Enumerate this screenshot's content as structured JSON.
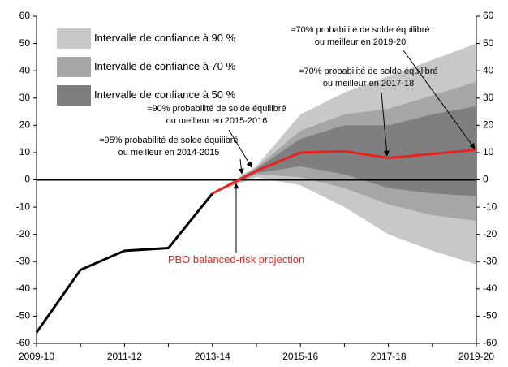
{
  "chart_data": {
    "type": "fan",
    "categories": [
      "2009-10",
      null,
      "2011-12",
      null,
      "2013-14",
      null,
      "2015-16",
      null,
      "2017-18",
      null,
      "2019-20"
    ],
    "ylim": [
      -60,
      60
    ],
    "yticks": [
      -60,
      -50,
      -40,
      -30,
      -20,
      -10,
      0,
      10,
      20,
      30,
      40,
      50,
      60
    ],
    "y2lim": [
      -60,
      60
    ],
    "y2ticks": [
      -60,
      -50,
      -40,
      -30,
      -20,
      -10,
      0,
      10,
      20,
      30,
      40,
      50,
      60
    ],
    "bands": [
      {
        "name": "Intervalle de confiance à 90 %",
        "color": "#c8c8c8",
        "values": [
          null,
          null,
          null,
          null,
          -5,
          5,
          24,
          32,
          38,
          44,
          50
        ],
        "lower": [
          null,
          null,
          null,
          null,
          -5,
          1,
          -2,
          -10,
          -20,
          -26,
          -31
        ]
      },
      {
        "name": "Intervalle de confiance à 70 %",
        "color": "#a6a6a6",
        "values": [
          null,
          null,
          null,
          null,
          -5,
          4.5,
          18,
          24,
          26,
          31,
          36
        ],
        "lower": [
          null,
          null,
          null,
          null,
          -5,
          2,
          1,
          -3,
          -9,
          -13,
          -15
        ]
      },
      {
        "name": "Intervalle de confiance à 50 %",
        "color": "#7f7f7f",
        "values": [
          null,
          null,
          null,
          null,
          -5,
          4,
          15,
          20,
          20,
          24,
          27
        ],
        "lower": [
          null,
          null,
          null,
          null,
          -5,
          2.5,
          5,
          2,
          -3,
          -5,
          -6
        ]
      }
    ],
    "series": [
      {
        "color": "#000000",
        "values": [
          -56,
          -33,
          -26,
          -25,
          -5,
          null,
          null,
          null,
          null,
          null,
          null
        ]
      },
      {
        "color": "#e8231f",
        "values": [
          null,
          null,
          null,
          null,
          -5,
          3.3,
          10,
          10.5,
          8,
          9.5,
          11
        ]
      }
    ],
    "annotations": [
      {
        "text": [
          "≈95% probabilité de solde équilibré",
          "ou meilleur en 2014-2015"
        ]
      },
      {
        "text": [
          "≈90% probabilité de solde équilibré",
          "ou meilleur en 2015-2016"
        ]
      },
      {
        "text": [
          "≈70% probabilité de solde équilibré",
          "ou meilleur en 2017-18"
        ]
      },
      {
        "text": [
          "≈70% probabilité de solde équilibré",
          "ou meilleur en 2019-20"
        ]
      },
      {
        "text": [
          "PBO balanced-risk projection"
        ],
        "color": "#e8231f"
      }
    ]
  }
}
